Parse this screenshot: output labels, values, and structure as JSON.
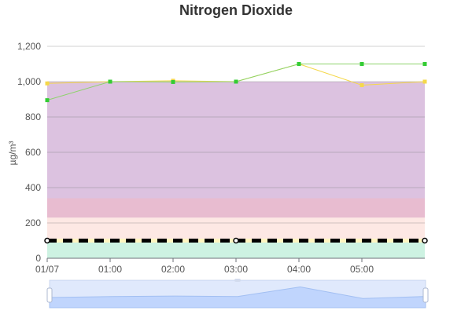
{
  "chart_data": {
    "type": "line",
    "title": "Nitrogen Dioxide",
    "ylabel": "µg/m³",
    "xlabel": "",
    "x": [
      "01/07",
      "01:00",
      "02:00",
      "03:00",
      "04:00",
      "05:00",
      ""
    ],
    "x_tick_labels": [
      "01/07",
      "01:00",
      "02:00",
      "03:00",
      "04:00",
      "05:00"
    ],
    "y_tick_labels": [
      "0",
      "200",
      "400",
      "600",
      "800",
      "1,000",
      "1,200"
    ],
    "ylim": [
      0,
      1200
    ],
    "y_ticks": [
      0,
      200,
      400,
      600,
      800,
      1000,
      1200
    ],
    "grid": true,
    "series": [
      {
        "values": [
          990,
          1000,
          1005,
          1000,
          1100,
          980,
          1000
        ],
        "color": "#f5d84a"
      },
      {
        "values": [
          895,
          1000,
          998,
          1000,
          1100,
          1100,
          1100
        ],
        "color": "#8dd36a",
        "marker_color": "#33cc33"
      }
    ],
    "limit_line": {
      "value": 100,
      "color": "#000000",
      "dash_color": "#fff5c0"
    },
    "bands": [
      {
        "from": 0,
        "to": 100,
        "color": "#cdf2e2"
      },
      {
        "from": 100,
        "to": 230,
        "color": "#fde8e4"
      },
      {
        "from": 230,
        "to": 340,
        "color": "#e8bcd0"
      },
      {
        "from": 340,
        "to": 1000,
        "color": "#dcc2e0"
      }
    ],
    "zoom_slider": {
      "start": 0,
      "end": 1,
      "preview_values": [
        990,
        1000,
        1005,
        1000,
        1100,
        980,
        1000
      ]
    }
  }
}
